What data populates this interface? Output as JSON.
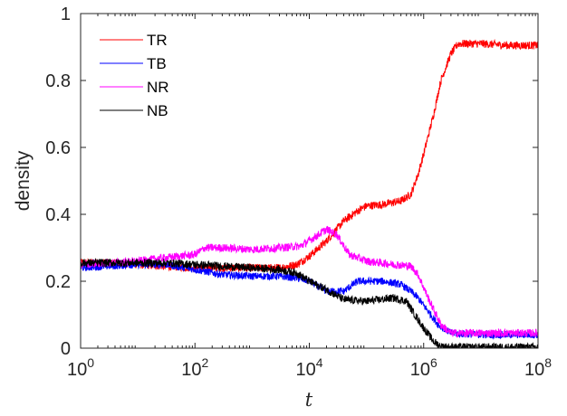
{
  "chart_data": {
    "type": "line",
    "xscale": "log",
    "xlim": [
      1,
      100000000
    ],
    "ylim": [
      0,
      1
    ],
    "xlabel": "t",
    "ylabel": "density",
    "xticks": [
      {
        "value": 1,
        "base": "10",
        "exp": "0"
      },
      {
        "value": 100,
        "base": "10",
        "exp": "2"
      },
      {
        "value": 10000,
        "base": "10",
        "exp": "4"
      },
      {
        "value": 1000000,
        "base": "10",
        "exp": "6"
      },
      {
        "value": 100000000,
        "base": "10",
        "exp": "8"
      }
    ],
    "yticks": [
      "0",
      "0.2",
      "0.4",
      "0.6",
      "0.8",
      "1"
    ],
    "grid": false,
    "legend_position": "top-left",
    "series": [
      {
        "name": "TR",
        "color": "#ff0000",
        "noise": 0.012,
        "points": [
          [
            1,
            0.255
          ],
          [
            3,
            0.255
          ],
          [
            10,
            0.25
          ],
          [
            30,
            0.245
          ],
          [
            100,
            0.24
          ],
          [
            300,
            0.24
          ],
          [
            1000,
            0.24
          ],
          [
            3000,
            0.24
          ],
          [
            6000,
            0.25
          ],
          [
            10000,
            0.275
          ],
          [
            20000,
            0.32
          ],
          [
            40000,
            0.38
          ],
          [
            70000,
            0.41
          ],
          [
            100000,
            0.425
          ],
          [
            200000,
            0.43
          ],
          [
            400000,
            0.44
          ],
          [
            600000,
            0.46
          ],
          [
            800000,
            0.52
          ],
          [
            1000000,
            0.58
          ],
          [
            1500000,
            0.7
          ],
          [
            2000000,
            0.8
          ],
          [
            3000000,
            0.88
          ],
          [
            4000000,
            0.91
          ],
          [
            10000000,
            0.91
          ],
          [
            30000000,
            0.905
          ],
          [
            100000000,
            0.905
          ]
        ]
      },
      {
        "name": "TB",
        "color": "#0000ff",
        "noise": 0.011,
        "points": [
          [
            1,
            0.24
          ],
          [
            3,
            0.245
          ],
          [
            10,
            0.25
          ],
          [
            30,
            0.25
          ],
          [
            100,
            0.235
          ],
          [
            300,
            0.22
          ],
          [
            1000,
            0.215
          ],
          [
            3000,
            0.215
          ],
          [
            6000,
            0.21
          ],
          [
            10000,
            0.2
          ],
          [
            20000,
            0.17
          ],
          [
            40000,
            0.17
          ],
          [
            70000,
            0.2
          ],
          [
            200000,
            0.2
          ],
          [
            400000,
            0.19
          ],
          [
            600000,
            0.17
          ],
          [
            800000,
            0.15
          ],
          [
            1200000,
            0.11
          ],
          [
            1800000,
            0.07
          ],
          [
            3000000,
            0.045
          ],
          [
            10000000,
            0.04
          ],
          [
            100000000,
            0.04
          ]
        ]
      },
      {
        "name": "NR",
        "color": "#ff00ff",
        "noise": 0.012,
        "points": [
          [
            1,
            0.25
          ],
          [
            3,
            0.255
          ],
          [
            10,
            0.26
          ],
          [
            30,
            0.27
          ],
          [
            100,
            0.28
          ],
          [
            150,
            0.3
          ],
          [
            300,
            0.3
          ],
          [
            1000,
            0.295
          ],
          [
            3000,
            0.3
          ],
          [
            7000,
            0.305
          ],
          [
            12000,
            0.33
          ],
          [
            20000,
            0.355
          ],
          [
            30000,
            0.34
          ],
          [
            50000,
            0.28
          ],
          [
            100000,
            0.26
          ],
          [
            300000,
            0.25
          ],
          [
            600000,
            0.245
          ],
          [
            800000,
            0.22
          ],
          [
            1200000,
            0.15
          ],
          [
            2000000,
            0.07
          ],
          [
            3000000,
            0.045
          ],
          [
            10000000,
            0.045
          ],
          [
            100000000,
            0.045
          ]
        ]
      },
      {
        "name": "NB",
        "color": "#000000",
        "noise": 0.012,
        "points": [
          [
            1,
            0.255
          ],
          [
            3,
            0.255
          ],
          [
            10,
            0.255
          ],
          [
            30,
            0.255
          ],
          [
            100,
            0.25
          ],
          [
            300,
            0.245
          ],
          [
            1000,
            0.24
          ],
          [
            3000,
            0.235
          ],
          [
            6000,
            0.225
          ],
          [
            10000,
            0.2
          ],
          [
            20000,
            0.175
          ],
          [
            40000,
            0.145
          ],
          [
            100000,
            0.14
          ],
          [
            300000,
            0.15
          ],
          [
            500000,
            0.14
          ],
          [
            700000,
            0.1
          ],
          [
            1000000,
            0.06
          ],
          [
            1500000,
            0.02
          ],
          [
            2000000,
            0.005
          ],
          [
            3000000,
            0.003
          ],
          [
            100000000,
            0.003
          ]
        ]
      }
    ]
  }
}
